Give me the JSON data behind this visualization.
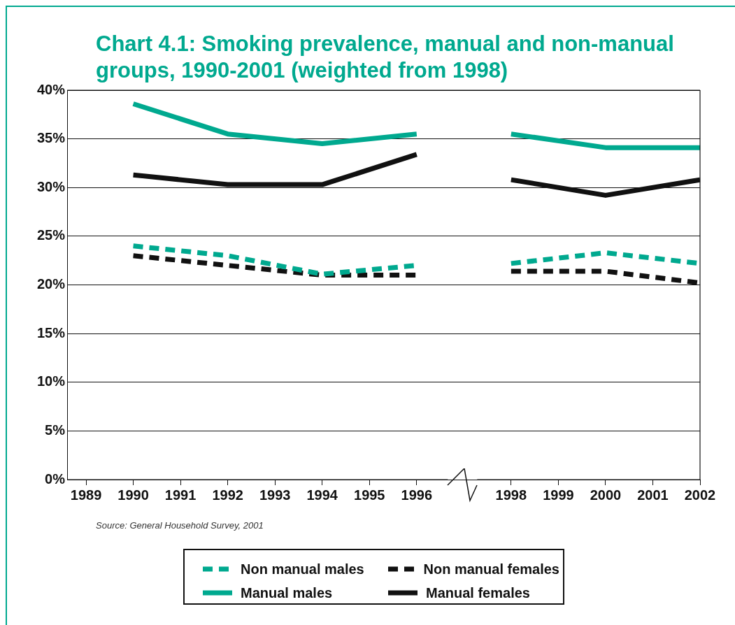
{
  "chart_data": {
    "type": "line",
    "title": "Chart 4.1: Smoking prevalence, manual and non-manual groups, 1990-2001 (weighted from 1998)",
    "x": [
      1990,
      1992,
      1994,
      1996,
      1997,
      1998,
      2000,
      2002
    ],
    "series": [
      {
        "name": "Non manual males",
        "color": "#00a98f",
        "line_style": "dashed",
        "values": [
          24.0,
          23.0,
          21.1,
          22.0,
          null,
          22.2,
          23.3,
          22.2
        ]
      },
      {
        "name": "Non manual females",
        "color": "#111111",
        "line_style": "dashed",
        "values": [
          23.0,
          22.0,
          21.0,
          21.0,
          null,
          21.4,
          21.4,
          20.2
        ]
      },
      {
        "name": "Manual males",
        "color": "#00a98f",
        "line_style": "solid",
        "values": [
          38.6,
          35.5,
          34.5,
          35.5,
          null,
          35.5,
          34.1,
          34.1
        ]
      },
      {
        "name": "Manual females",
        "color": "#111111",
        "line_style": "solid",
        "values": [
          31.3,
          30.3,
          30.3,
          33.4,
          null,
          30.8,
          29.2,
          30.8
        ]
      }
    ],
    "xlim": [
      1988.6,
      2002
    ],
    "xticks": [
      1989,
      1990,
      1991,
      1992,
      1993,
      1994,
      1995,
      1996,
      1998,
      1999,
      2000,
      2001,
      2002
    ],
    "ylim": [
      0,
      40
    ],
    "yticks": [
      {
        "value": 0,
        "label": "0%"
      },
      {
        "value": 5,
        "label": "5%"
      },
      {
        "value": 10,
        "label": "10%"
      },
      {
        "value": 15,
        "label": "15%"
      },
      {
        "value": 20,
        "label": "20%"
      },
      {
        "value": 25,
        "label": "25%"
      },
      {
        "value": 30,
        "label": "30%"
      },
      {
        "value": 35,
        "label": "35%"
      },
      {
        "value": 40,
        "label": "40%"
      }
    ],
    "grid": "y",
    "legend": "bottom",
    "marker": "none",
    "annotations": [
      "Source: General Household Survey, 2001"
    ]
  }
}
